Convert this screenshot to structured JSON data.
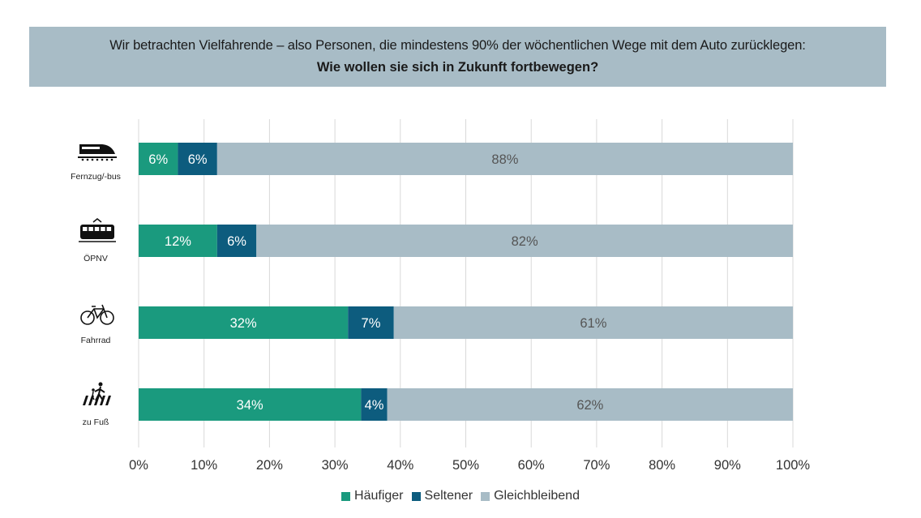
{
  "header": {
    "line1": "Wir betrachten Vielfahrende – also Personen, die mindestens 90% der wöchentlichen Wege mit dem Auto zurücklegen:",
    "line2": "Wie wollen sie sich in Zukunft fortbewegen?"
  },
  "colors": {
    "haeufiger": "#1a9a7e",
    "seltener": "#0d5c7e",
    "gleichbleibend": "#a8bcc6",
    "header_bg": "#a8bcc6"
  },
  "chart_data": {
    "type": "bar",
    "orientation": "horizontal",
    "stacked": true,
    "categories": [
      "Fernzug/-bus",
      "ÖPNV",
      "Fahrrad",
      "zu Fuß"
    ],
    "category_icons": [
      "train-icon",
      "tram-icon",
      "bicycle-icon",
      "pedestrian-crossing-icon"
    ],
    "series": [
      {
        "name": "Häufiger",
        "color": "#1a9a7e",
        "label_color": "#ffffff",
        "values": [
          6,
          12,
          32,
          34
        ]
      },
      {
        "name": "Seltener",
        "color": "#0d5c7e",
        "label_color": "#ffffff",
        "values": [
          6,
          6,
          7,
          4
        ]
      },
      {
        "name": "Gleichbleibend",
        "color": "#a8bcc6",
        "label_color": "#555555",
        "values": [
          88,
          82,
          61,
          62
        ]
      }
    ],
    "xlim": [
      0,
      100
    ],
    "xticks": [
      "0%",
      "10%",
      "20%",
      "30%",
      "40%",
      "50%",
      "60%",
      "70%",
      "80%",
      "90%",
      "100%"
    ],
    "grid": true,
    "legend_position": "bottom"
  }
}
